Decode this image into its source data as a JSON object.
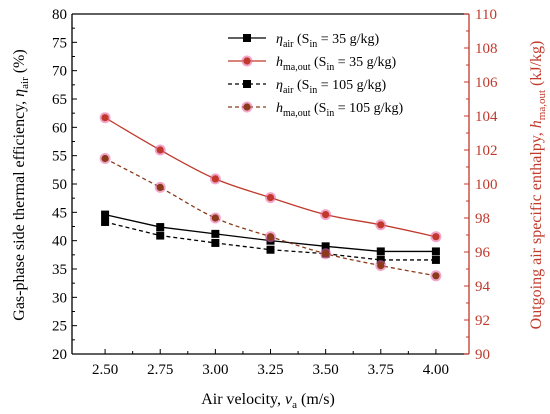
{
  "chart_data": {
    "type": "line",
    "x": [
      2.5,
      2.75,
      3.0,
      3.25,
      3.5,
      3.75,
      4.0
    ],
    "x_tick_labels": [
      "2.50",
      "2.75",
      "3.00",
      "3.25",
      "3.50",
      "3.75",
      "4.00"
    ],
    "xlim": [
      2.35,
      4.15
    ],
    "xlabel_text": "Air velocity, ",
    "xlabel_var": "v",
    "xlabel_sub": "a",
    "xlabel_unit": " (m/s)",
    "y_left": {
      "lim": [
        20,
        80
      ],
      "ticks": [
        20,
        25,
        30,
        35,
        40,
        45,
        50,
        55,
        60,
        65,
        70,
        75,
        80
      ],
      "label_text": "Gas-phase side thermal efficiency, ",
      "label_var": "η",
      "label_sub": "air",
      "label_unit": " (%)"
    },
    "y_right": {
      "lim": [
        90,
        110
      ],
      "ticks": [
        90,
        92,
        94,
        96,
        98,
        100,
        102,
        104,
        106,
        108,
        110
      ],
      "label_text": "Outgoing air specific enthalpy, ",
      "label_var": "h",
      "label_sub": "ma,out",
      "label_unit": " (kJ/kg)"
    },
    "grid": false,
    "legend_position": "top-center",
    "series": [
      {
        "key": "eta35",
        "legend_var": "η",
        "legend_sub": "air",
        "legend_cond": " (S",
        "legend_cond_sub": "in",
        "legend_cond_rest": " = 35 g/kg)",
        "axis": "left",
        "marker": "square",
        "dash": "solid",
        "color": "#000000",
        "values": [
          44.6,
          42.4,
          41.2,
          40.0,
          39.0,
          38.1,
          38.1
        ]
      },
      {
        "key": "h35",
        "legend_var": "h",
        "legend_sub": "ma,out",
        "legend_cond": " (S",
        "legend_cond_sub": "in",
        "legend_cond_rest": " = 35 g/kg)",
        "axis": "right",
        "marker": "circle",
        "dash": "solid",
        "color": "#c0392b",
        "values": [
          103.9,
          102.0,
          100.3,
          99.2,
          98.2,
          97.6,
          96.9
        ]
      },
      {
        "key": "eta105",
        "legend_var": "η",
        "legend_sub": "air",
        "legend_cond": " (S",
        "legend_cond_sub": "in",
        "legend_cond_rest": " = 105 g/kg)",
        "axis": "left",
        "marker": "square",
        "dash": "dashed",
        "color": "#000000",
        "values": [
          43.3,
          40.9,
          39.6,
          38.4,
          37.7,
          36.6,
          36.6
        ]
      },
      {
        "key": "h105",
        "legend_var": "h",
        "legend_sub": "ma,out",
        "legend_cond": " (S",
        "legend_cond_sub": "in",
        "legend_cond_rest": " = 105 g/kg)",
        "axis": "right",
        "marker": "circle",
        "dash": "dashed",
        "color": "#8b3a1a",
        "values": [
          101.5,
          99.8,
          98.0,
          96.9,
          95.9,
          95.2,
          94.6
        ]
      }
    ]
  },
  "colors": {
    "left_axis": "#000000",
    "right_axis": "#c0392b",
    "marker_halo": "#e86aa8"
  }
}
